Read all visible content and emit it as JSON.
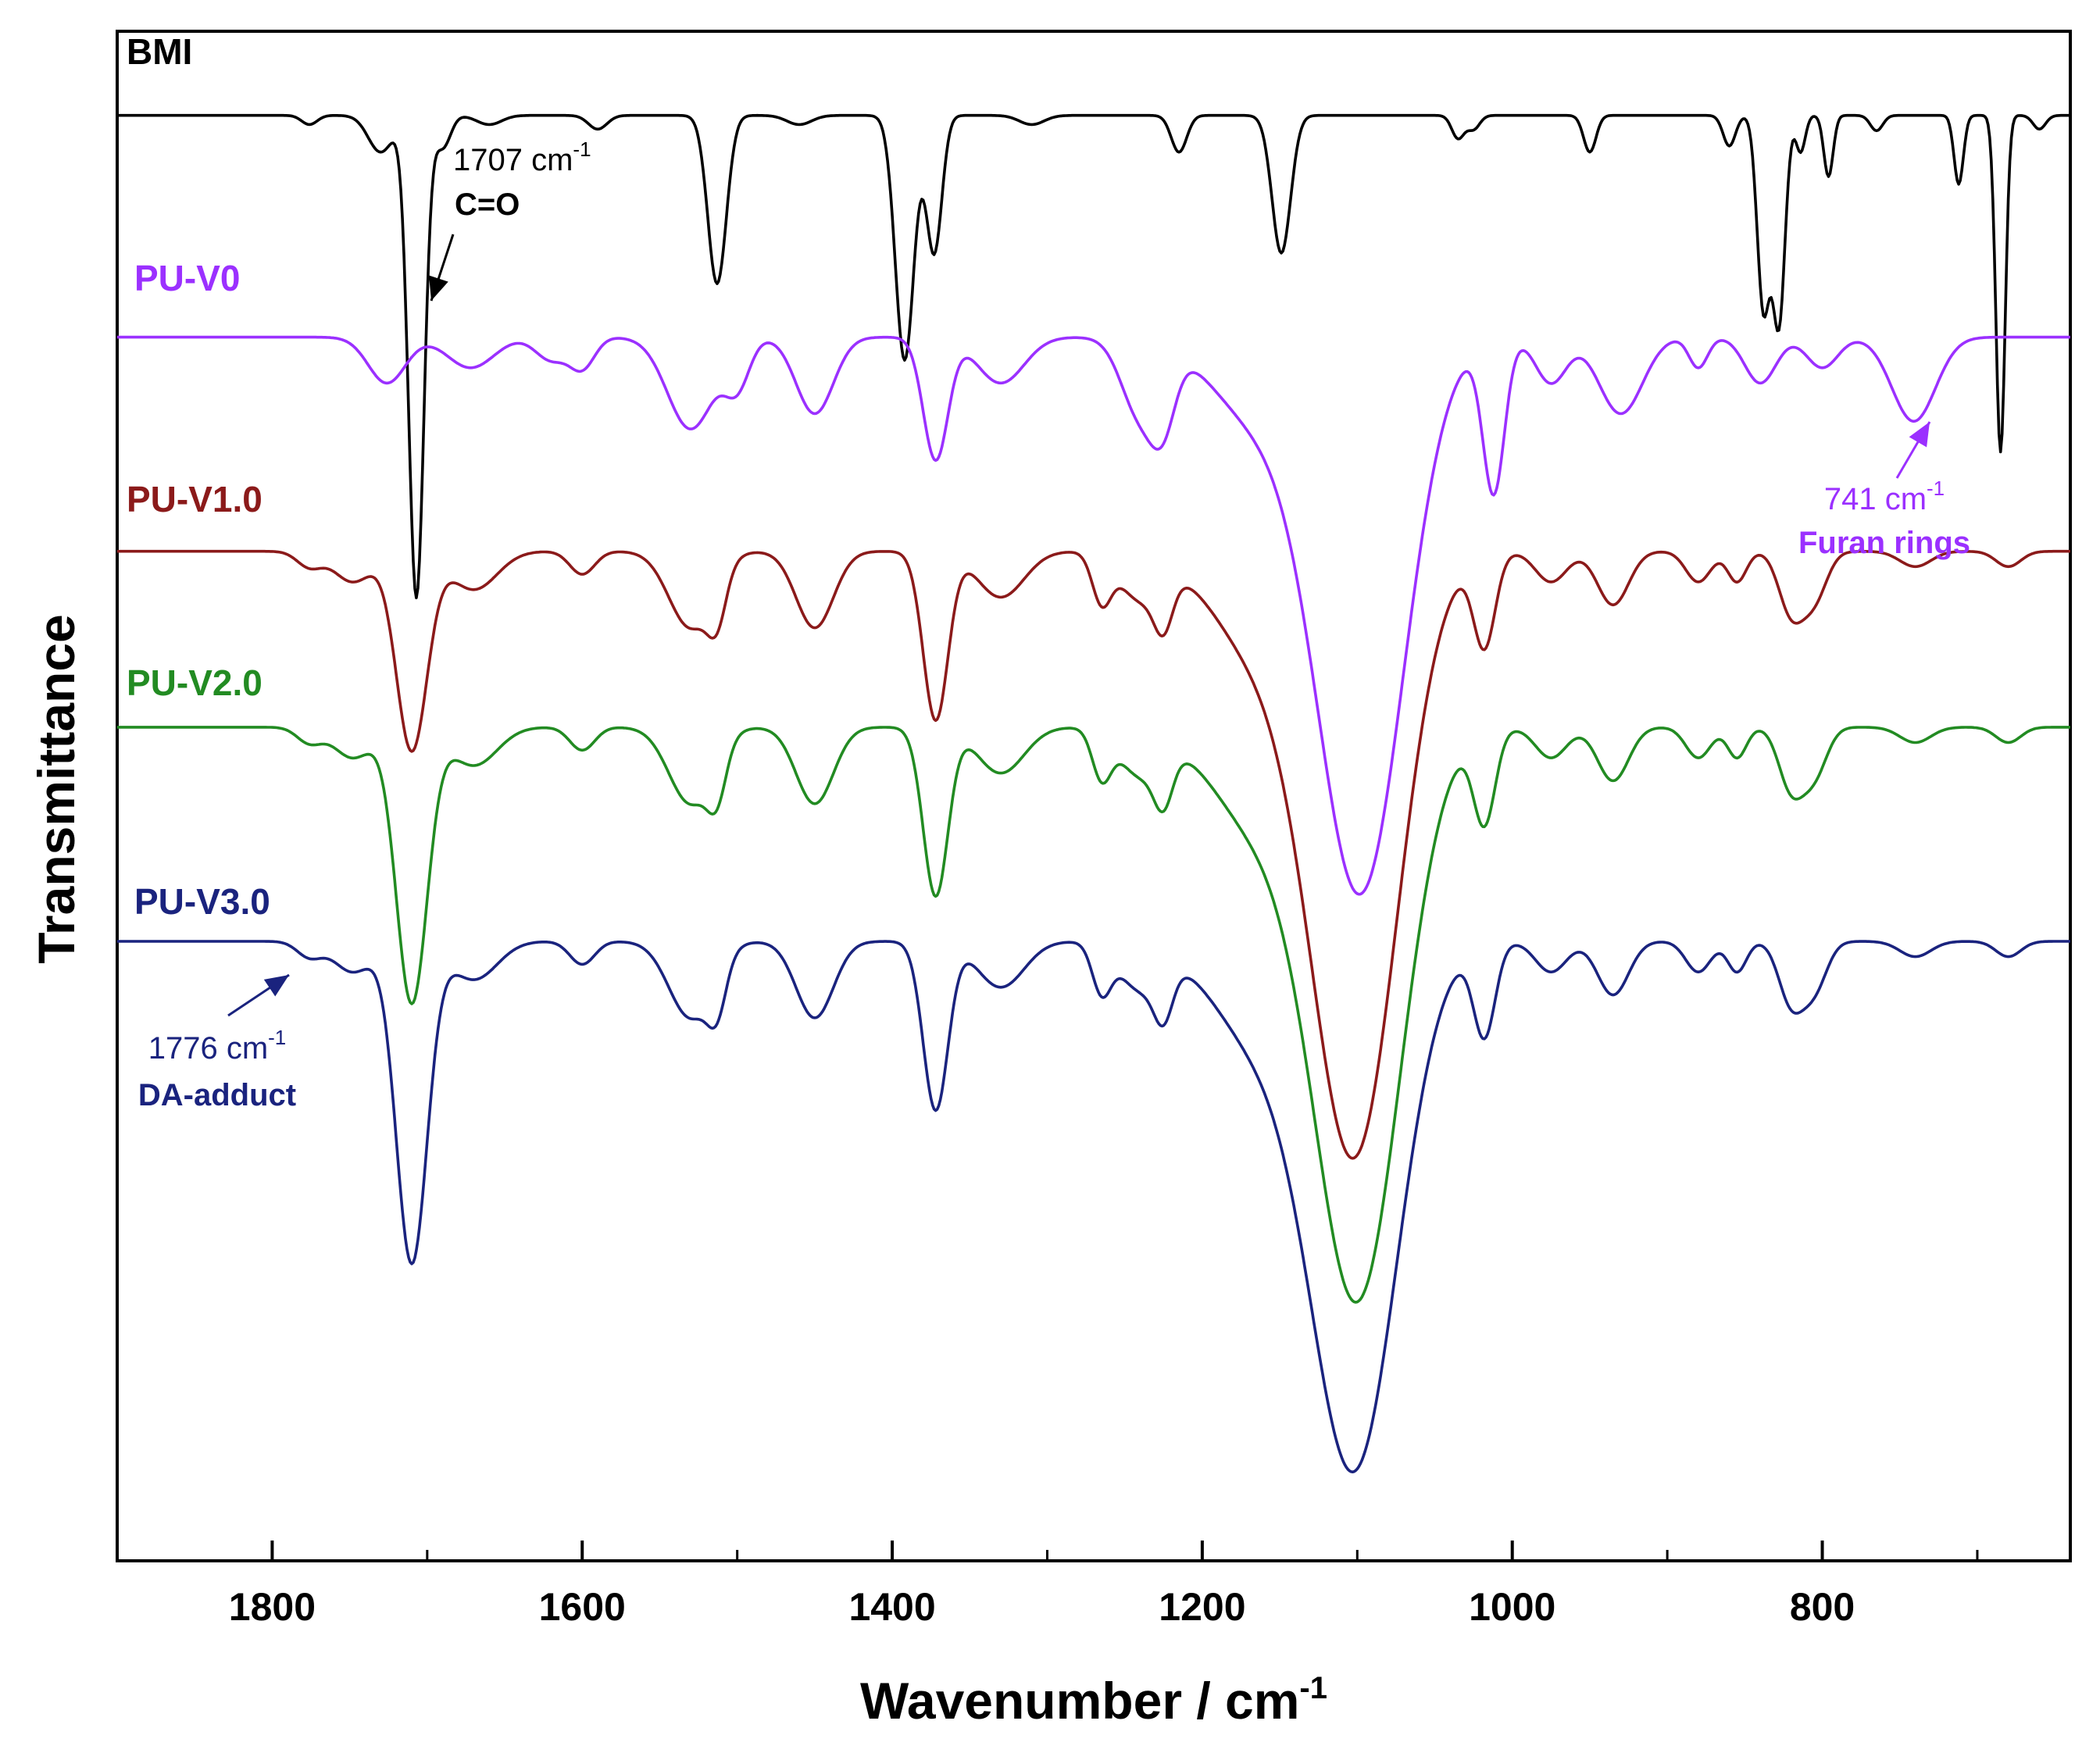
{
  "chart_data": {
    "type": "line",
    "title": "",
    "xlabel": "Wavenumber / cm",
    "xlabel_sup": "-1",
    "ylabel": "Transmittance",
    "xlim": [
      1900,
      640
    ],
    "x_reversed": true,
    "ylim": [
      0,
      100
    ],
    "yticks_shown": false,
    "grid": false,
    "xticks": [
      {
        "value": 1800,
        "label": "1800"
      },
      {
        "value": 1600,
        "label": "1600"
      },
      {
        "value": 1400,
        "label": "1400"
      },
      {
        "value": 1200,
        "label": "1200"
      },
      {
        "value": 1000,
        "label": "1000"
      },
      {
        "value": 800,
        "label": "800"
      }
    ],
    "series": [
      {
        "name": "BMI",
        "label": "BMI",
        "color": "#000000",
        "baseline": 94.5,
        "peaks": [
          [
            1776,
            0.6,
            5
          ],
          [
            1730,
            2.4,
            8
          ],
          [
            1707,
            31.5,
            5
          ],
          [
            1690,
            2.1,
            5
          ],
          [
            1660,
            0.6,
            8
          ],
          [
            1590,
            0.9,
            6
          ],
          [
            1513,
            11,
            6
          ],
          [
            1460,
            0.6,
            8
          ],
          [
            1392,
            16,
            6
          ],
          [
            1373,
            9,
            5
          ],
          [
            1310,
            0.6,
            8
          ],
          [
            1215,
            2.4,
            5
          ],
          [
            1149,
            9,
            6
          ],
          [
            1035,
            1.5,
            4
          ],
          [
            1025,
            0.9,
            4
          ],
          [
            950,
            2.4,
            4
          ],
          [
            860,
            2,
            4
          ],
          [
            838,
            12.5,
            4
          ],
          [
            828,
            13.5,
            4
          ],
          [
            814,
            2.4,
            3
          ],
          [
            796,
            4,
            3
          ],
          [
            765,
            1,
            4
          ],
          [
            712,
            4.5,
            3
          ],
          [
            685,
            22,
            3
          ],
          [
            660,
            0.9,
            4
          ]
        ]
      },
      {
        "name": "PU-V0",
        "label": "PU-V0",
        "color": "#9b30ff",
        "baseline": 80,
        "peaks": [
          [
            1726,
            3,
            12
          ],
          [
            1672,
            2,
            15
          ],
          [
            1620,
            1.5,
            10
          ],
          [
            1600,
            2,
            8
          ],
          [
            1530,
            6,
            15
          ],
          [
            1500,
            3,
            8
          ],
          [
            1450,
            5,
            12
          ],
          [
            1372,
            8,
            8
          ],
          [
            1330,
            3,
            15
          ],
          [
            1240,
            5,
            12
          ],
          [
            1225,
            4,
            8
          ],
          [
            1165,
            5,
            30
          ],
          [
            1098,
            36,
            28
          ],
          [
            1012,
            10,
            7
          ],
          [
            975,
            3,
            10
          ],
          [
            930,
            5,
            14
          ],
          [
            880,
            2,
            6
          ],
          [
            840,
            3,
            10
          ],
          [
            800,
            2,
            10
          ],
          [
            741,
            5.5,
            14
          ]
        ]
      },
      {
        "name": "PU-V1.0",
        "label": "PU-V1.0",
        "color": "#8b1a1a",
        "baseline": 66,
        "peaks": [
          [
            1776,
            1,
            8
          ],
          [
            1748,
            2,
            12
          ],
          [
            1710,
            13,
            10
          ],
          [
            1670,
            2.5,
            15
          ],
          [
            1600,
            1.5,
            8
          ],
          [
            1530,
            5,
            14
          ],
          [
            1513,
            3,
            6
          ],
          [
            1450,
            5,
            12
          ],
          [
            1372,
            11,
            8
          ],
          [
            1330,
            3,
            15
          ],
          [
            1265,
            3,
            6
          ],
          [
            1240,
            3,
            14
          ],
          [
            1225,
            3,
            6
          ],
          [
            1165,
            6,
            30
          ],
          [
            1102,
            39,
            28
          ],
          [
            1018,
            6,
            7
          ],
          [
            975,
            2,
            10
          ],
          [
            935,
            3.5,
            10
          ],
          [
            880,
            2,
            8
          ],
          [
            855,
            2,
            6
          ],
          [
            820,
            4,
            8
          ],
          [
            805,
            3,
            8
          ],
          [
            740,
            1,
            10
          ],
          [
            680,
            1,
            8
          ]
        ]
      },
      {
        "name": "PU-V2.0",
        "label": "PU-V2.0",
        "color": "#228b22",
        "baseline": 54.5,
        "peaks": [
          [
            1776,
            1,
            8
          ],
          [
            1748,
            2,
            12
          ],
          [
            1710,
            18,
            10
          ],
          [
            1670,
            2.5,
            15
          ],
          [
            1600,
            1.5,
            8
          ],
          [
            1530,
            5,
            14
          ],
          [
            1513,
            3,
            6
          ],
          [
            1450,
            5,
            12
          ],
          [
            1372,
            11,
            8
          ],
          [
            1330,
            3,
            15
          ],
          [
            1265,
            3,
            6
          ],
          [
            1240,
            3,
            14
          ],
          [
            1225,
            3,
            6
          ],
          [
            1165,
            6,
            30
          ],
          [
            1100,
            37,
            28
          ],
          [
            1018,
            6,
            7
          ],
          [
            975,
            2,
            10
          ],
          [
            935,
            3.5,
            10
          ],
          [
            880,
            2,
            8
          ],
          [
            855,
            2,
            6
          ],
          [
            820,
            4,
            8
          ],
          [
            805,
            3,
            8
          ],
          [
            740,
            1,
            10
          ],
          [
            680,
            1,
            8
          ]
        ]
      },
      {
        "name": "PU-V3.0",
        "label": "PU-V3.0",
        "color": "#1a237e",
        "baseline": 40.5,
        "peaks": [
          [
            1776,
            1,
            8
          ],
          [
            1748,
            2,
            12
          ],
          [
            1710,
            21,
            10
          ],
          [
            1670,
            2.5,
            15
          ],
          [
            1600,
            1.5,
            8
          ],
          [
            1530,
            5,
            14
          ],
          [
            1513,
            3,
            6
          ],
          [
            1450,
            5,
            12
          ],
          [
            1372,
            11,
            8
          ],
          [
            1330,
            3,
            15
          ],
          [
            1265,
            3,
            6
          ],
          [
            1240,
            3,
            14
          ],
          [
            1225,
            3,
            6
          ],
          [
            1165,
            6,
            30
          ],
          [
            1102,
            34,
            28
          ],
          [
            1018,
            6,
            7
          ],
          [
            975,
            2,
            10
          ],
          [
            935,
            3.5,
            10
          ],
          [
            880,
            2,
            8
          ],
          [
            855,
            2,
            6
          ],
          [
            820,
            4,
            8
          ],
          [
            805,
            3,
            8
          ],
          [
            740,
            1,
            10
          ],
          [
            680,
            1,
            8
          ]
        ]
      }
    ],
    "annotations": [
      {
        "name": "annotation-1707",
        "value": "1707 cm",
        "sup": "-1",
        "desc": "C=O",
        "color": "#000000",
        "x": 1707
      },
      {
        "name": "annotation-741",
        "value": "741 cm",
        "sup": "-1",
        "desc": "Furan rings",
        "color": "#9b30ff",
        "x": 741
      },
      {
        "name": "annotation-1776",
        "value": "1776 cm",
        "sup": "-1",
        "desc": "DA-adduct",
        "color": "#1a237e",
        "x": 1776
      }
    ]
  }
}
